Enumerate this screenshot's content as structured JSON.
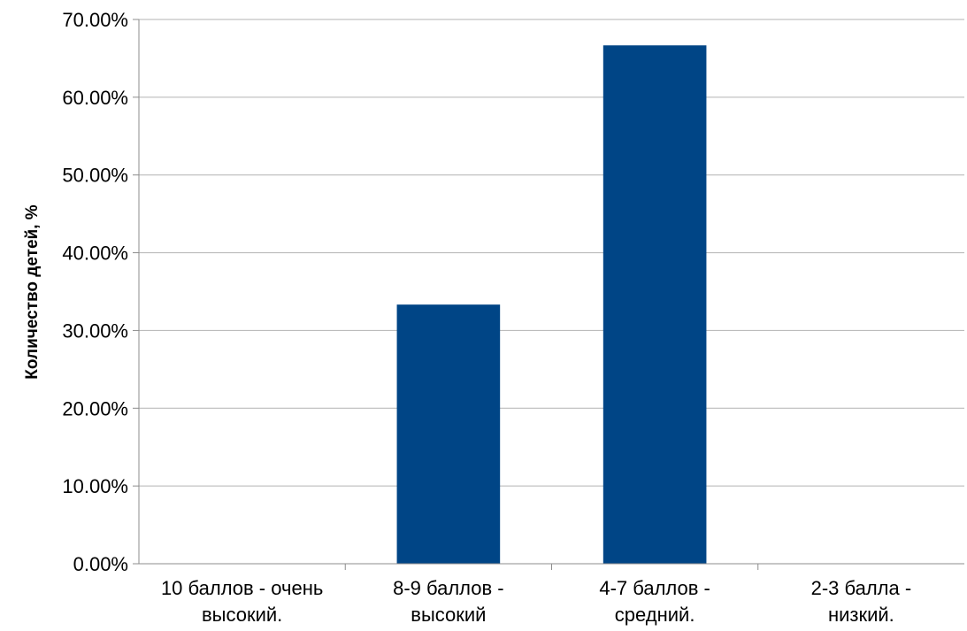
{
  "chart_data": {
    "type": "bar",
    "categories": [
      [
        "10 баллов - очень",
        "высокий."
      ],
      [
        "8-9 баллов -",
        "высокий"
      ],
      [
        "4-7 баллов -",
        "средний."
      ],
      [
        "2-3 балла -",
        "низкий."
      ]
    ],
    "values": [
      0,
      33.33,
      66.67,
      0
    ],
    "ylabel": "Количество детей, %",
    "ylim": [
      0,
      70
    ],
    "yticks": [
      "0.00%",
      "10.00%",
      "20.00%",
      "30.00%",
      "40.00%",
      "50.00%",
      "60.00%",
      "70.00%"
    ],
    "grid": true,
    "legend": "none",
    "bar_color": "#004586"
  }
}
